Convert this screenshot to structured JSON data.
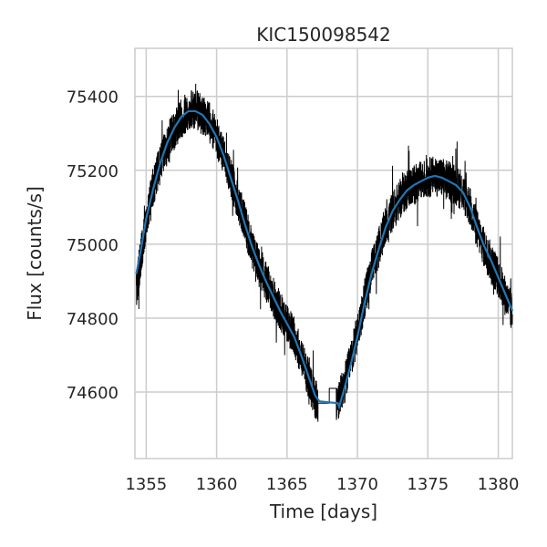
{
  "chart_data": {
    "type": "line",
    "title": "KIC150098542",
    "xlabel": "Time [days]",
    "ylabel": "Flux [counts/s]",
    "xlim": [
      1354.2,
      1381.0
    ],
    "ylim": [
      74420,
      75530
    ],
    "x_ticks": [
      1355,
      1360,
      1365,
      1370,
      1375,
      1380
    ],
    "y_ticks": [
      74600,
      74800,
      75000,
      75200,
      75400
    ],
    "grid": true,
    "legend": "none",
    "series": [
      {
        "style": "raw",
        "color": "#000000",
        "points": [
          [
            1354.3,
            74880
          ],
          [
            1354.6,
            74960
          ],
          [
            1355.0,
            75070
          ],
          [
            1355.5,
            75150
          ],
          [
            1356.0,
            75220
          ],
          [
            1356.5,
            75270
          ],
          [
            1357.0,
            75310
          ],
          [
            1357.5,
            75340
          ],
          [
            1358.0,
            75360
          ],
          [
            1358.5,
            75365
          ],
          [
            1359.0,
            75350
          ],
          [
            1359.5,
            75330
          ],
          [
            1360.0,
            75290
          ],
          [
            1360.5,
            75240
          ],
          [
            1361.0,
            75180
          ],
          [
            1361.5,
            75120
          ],
          [
            1362.0,
            75060
          ],
          [
            1362.5,
            74990
          ],
          [
            1363.0,
            74940
          ],
          [
            1363.5,
            74900
          ],
          [
            1364.0,
            74860
          ],
          [
            1364.5,
            74820
          ],
          [
            1365.0,
            74790
          ],
          [
            1365.5,
            74750
          ],
          [
            1366.0,
            74700
          ],
          [
            1366.5,
            74640
          ],
          [
            1367.0,
            74580
          ],
          [
            1367.2,
            74570
          ],
          [
            1367.3,
            74570
          ],
          [
            1368.0,
            74570
          ],
          [
            1368.0,
            74610
          ],
          [
            1368.5,
            74610
          ],
          [
            1368.5,
            74560
          ],
          [
            1369.0,
            74610
          ],
          [
            1369.5,
            74680
          ],
          [
            1370.0,
            74760
          ],
          [
            1370.5,
            74850
          ],
          [
            1371.0,
            74930
          ],
          [
            1371.5,
            74990
          ],
          [
            1372.0,
            75050
          ],
          [
            1372.5,
            75090
          ],
          [
            1373.0,
            75120
          ],
          [
            1373.5,
            75150
          ],
          [
            1374.0,
            75160
          ],
          [
            1374.5,
            75170
          ],
          [
            1375.0,
            75180
          ],
          [
            1375.5,
            75185
          ],
          [
            1376.0,
            75180
          ],
          [
            1376.5,
            75170
          ],
          [
            1377.0,
            75160
          ],
          [
            1377.5,
            75140
          ],
          [
            1378.0,
            75100
          ],
          [
            1378.5,
            75040
          ],
          [
            1379.0,
            74990
          ],
          [
            1379.5,
            74950
          ],
          [
            1380.0,
            74910
          ],
          [
            1380.5,
            74860
          ],
          [
            1381.0,
            74810
          ]
        ]
      },
      {
        "style": "smoothed",
        "color": "#1f77b4",
        "points": [
          [
            1354.3,
            74920
          ],
          [
            1354.6,
            74980
          ],
          [
            1355.0,
            75070
          ],
          [
            1355.5,
            75150
          ],
          [
            1356.0,
            75220
          ],
          [
            1356.5,
            75275
          ],
          [
            1357.0,
            75315
          ],
          [
            1357.5,
            75345
          ],
          [
            1358.0,
            75360
          ],
          [
            1358.5,
            75360
          ],
          [
            1359.0,
            75350
          ],
          [
            1359.5,
            75325
          ],
          [
            1360.0,
            75290
          ],
          [
            1360.5,
            75240
          ],
          [
            1361.0,
            75180
          ],
          [
            1361.5,
            75120
          ],
          [
            1362.0,
            75055
          ],
          [
            1362.5,
            74995
          ],
          [
            1363.0,
            74945
          ],
          [
            1363.5,
            74900
          ],
          [
            1364.0,
            74860
          ],
          [
            1364.5,
            74820
          ],
          [
            1365.0,
            74785
          ],
          [
            1365.5,
            74750
          ],
          [
            1366.0,
            74700
          ],
          [
            1366.5,
            74645
          ],
          [
            1367.0,
            74590
          ],
          [
            1367.3,
            74575
          ],
          [
            1368.0,
            74572
          ],
          [
            1368.6,
            74570
          ],
          [
            1368.7,
            74560
          ],
          [
            1369.0,
            74600
          ],
          [
            1369.5,
            74670
          ],
          [
            1370.0,
            74750
          ],
          [
            1370.5,
            74840
          ],
          [
            1371.0,
            74920
          ],
          [
            1371.5,
            74985
          ],
          [
            1372.0,
            75045
          ],
          [
            1372.5,
            75090
          ],
          [
            1373.0,
            75120
          ],
          [
            1373.5,
            75145
          ],
          [
            1374.0,
            75160
          ],
          [
            1374.5,
            75170
          ],
          [
            1375.0,
            75180
          ],
          [
            1375.5,
            75185
          ],
          [
            1376.0,
            75180
          ],
          [
            1376.5,
            75170
          ],
          [
            1377.0,
            75160
          ],
          [
            1377.5,
            75140
          ],
          [
            1378.0,
            75100
          ],
          [
            1378.5,
            75045
          ],
          [
            1379.0,
            74995
          ],
          [
            1379.5,
            74955
          ],
          [
            1380.0,
            74910
          ],
          [
            1380.5,
            74865
          ],
          [
            1381.0,
            74820
          ]
        ]
      }
    ]
  }
}
